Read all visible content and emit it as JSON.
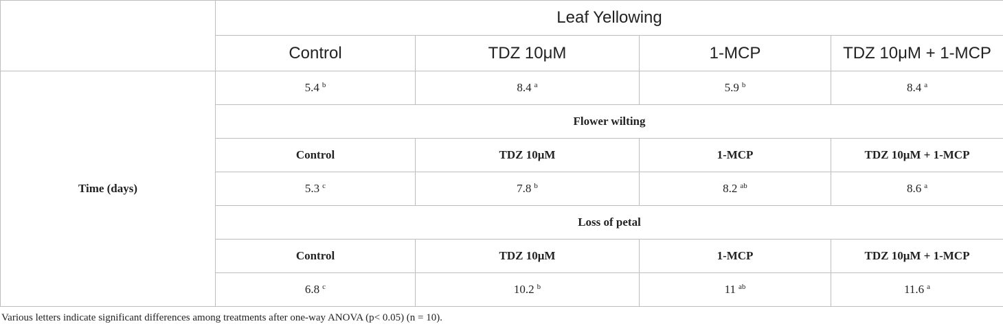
{
  "table": {
    "row_label": "Time (days)",
    "sections": [
      {
        "title": "Leaf Yellowing",
        "columns": [
          "Control",
          "TDZ 10μM",
          "1-MCP",
          "TDZ 10μM + 1-MCP"
        ],
        "values": [
          5.4,
          8.4,
          5.9,
          8.4
        ],
        "letters": [
          "b",
          "a",
          "b",
          "a"
        ]
      },
      {
        "title": "Flower wilting",
        "columns": [
          "Control",
          "TDZ 10μM",
          "1-MCP",
          "TDZ 10μM + 1-MCP"
        ],
        "values": [
          5.3,
          7.8,
          8.2,
          8.6
        ],
        "letters": [
          "c",
          "b",
          "ab",
          "a"
        ]
      },
      {
        "title": "Loss of petal",
        "columns": [
          "Control",
          "TDZ 10μM",
          "1-MCP",
          "TDZ 10μM + 1-MCP"
        ],
        "values": [
          6.8,
          10.2,
          11,
          11.6
        ],
        "letters": [
          "c",
          "b",
          "ab",
          "a"
        ]
      }
    ]
  },
  "footnote": "Various letters indicate significant differences among treatments after one-way ANOVA (p< 0.05) (n = 10)."
}
